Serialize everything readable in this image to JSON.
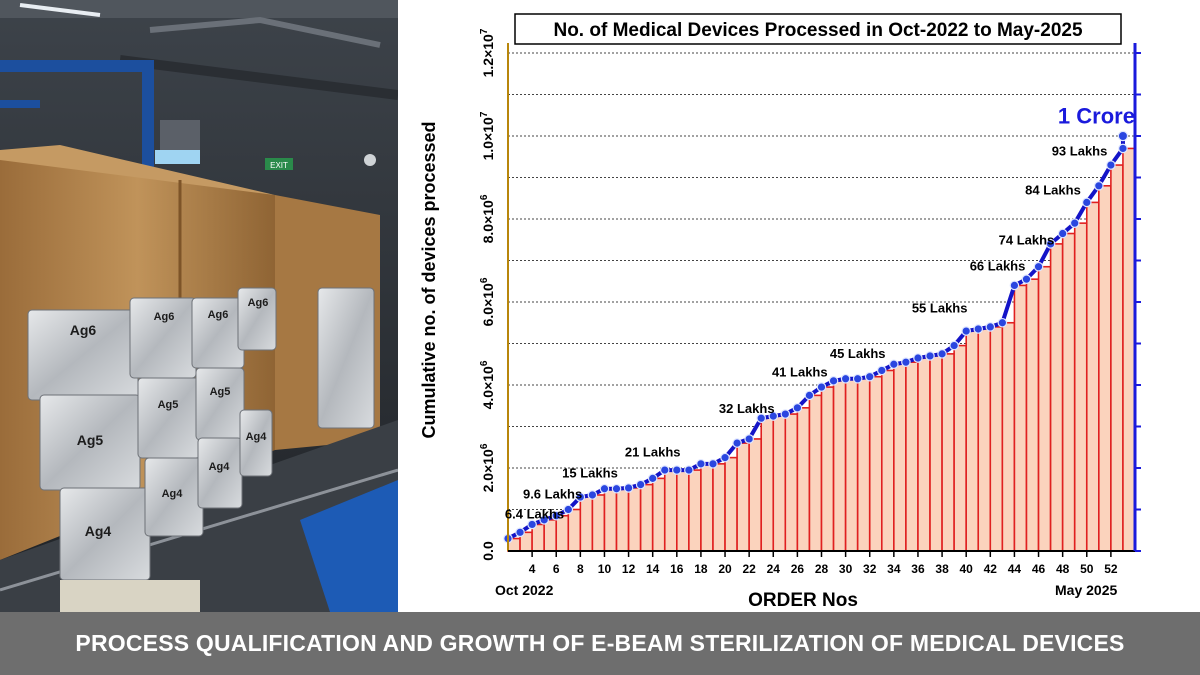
{
  "banner": {
    "text": "PROCESS QUALIFICATION AND GROWTH OF E-BEAM STERILIZATION OF MEDICAL DEVICES"
  },
  "photo": {
    "bag_labels": [
      "Ag6",
      "Ag6",
      "Ag6",
      "Ag6",
      "Ag5",
      "Ag5",
      "Ag5",
      "Ag4",
      "Ag4",
      "Ag4",
      "Ag4"
    ],
    "sign_text": "EXIT",
    "colors": {
      "rack_blue": "#1c4f9e",
      "cardboard": "#b8874e",
      "foil": "#c9ccd1"
    }
  },
  "chart_data": {
    "type": "bar",
    "title": "No. of Medical Devices Processed in Oct-2022 to May-2025",
    "xlabel": "ORDER Nos",
    "ylabel": "Cumulative no. of devices processed",
    "x_start_label": "Oct 2022",
    "x_end_label": "May 2025",
    "ylim": [
      0,
      12000000
    ],
    "xlim": [
      2,
      54
    ],
    "x_ticks": [
      4,
      6,
      8,
      10,
      12,
      14,
      16,
      18,
      20,
      22,
      24,
      26,
      28,
      30,
      32,
      34,
      36,
      38,
      40,
      42,
      44,
      46,
      48,
      50,
      52
    ],
    "y_tick_labels": [
      {
        "value": 0,
        "base": "0.0",
        "exp": ""
      },
      {
        "value": 2000000,
        "base": "2.0×10",
        "exp": "6"
      },
      {
        "value": 4000000,
        "base": "4.0×10",
        "exp": "6"
      },
      {
        "value": 6000000,
        "base": "6.0×10",
        "exp": "6"
      },
      {
        "value": 8000000,
        "base": "8.0×10",
        "exp": "6"
      },
      {
        "value": 10000000,
        "base": "1.0×10",
        "exp": "7"
      },
      {
        "value": 12000000,
        "base": "1.2×10",
        "exp": "7"
      }
    ],
    "grid": "horizontal dotted",
    "colors": {
      "bar_fill": "#fbd3bd",
      "bar_edge": "#e02020",
      "line": "#1414c8",
      "marker": "#2a46e0",
      "highlight": "#1a1adc",
      "left_axis": "#b8860b"
    },
    "x": [
      2,
      3,
      4,
      5,
      6,
      7,
      8,
      9,
      10,
      11,
      12,
      13,
      14,
      15,
      16,
      17,
      18,
      19,
      20,
      21,
      22,
      23,
      24,
      25,
      26,
      27,
      28,
      29,
      30,
      31,
      32,
      33,
      34,
      35,
      36,
      37,
      38,
      39,
      40,
      41,
      42,
      43,
      44,
      45,
      46,
      47,
      48,
      49,
      50,
      51,
      52,
      53
    ],
    "values": [
      300000,
      450000,
      640000,
      750000,
      850000,
      1000000,
      1300000,
      1350000,
      1500000,
      1500000,
      1520000,
      1600000,
      1750000,
      1950000,
      1950000,
      1950000,
      2100000,
      2100000,
      2250000,
      2600000,
      2700000,
      3200000,
      3250000,
      3300000,
      3450000,
      3750000,
      3950000,
      4100000,
      4150000,
      4150000,
      4200000,
      4350000,
      4500000,
      4550000,
      4650000,
      4700000,
      4750000,
      4950000,
      5300000,
      5350000,
      5400000,
      5500000,
      6400000,
      6550000,
      6850000,
      7400000,
      7650000,
      7900000,
      8400000,
      8800000,
      9300000,
      9700000
    ],
    "end_value": 10000000,
    "annotations": [
      {
        "text": "6.4 Lakhs",
        "x": 4.2,
        "y": 780000
      },
      {
        "text": "9.6 Lakhs",
        "x": 5.7,
        "y": 1270000
      },
      {
        "text": "15 Lakhs",
        "x": 8.8,
        "y": 1770000
      },
      {
        "text": "21 Lakhs",
        "x": 14.0,
        "y": 2280000
      },
      {
        "text": "32 Lakhs",
        "x": 21.8,
        "y": 3330000
      },
      {
        "text": "41 Lakhs",
        "x": 26.2,
        "y": 4200000
      },
      {
        "text": "45 Lakhs",
        "x": 31.0,
        "y": 4650000
      },
      {
        "text": "55 Lakhs",
        "x": 37.8,
        "y": 5750000
      },
      {
        "text": "66 Lakhs",
        "x": 42.6,
        "y": 6760000
      },
      {
        "text": "74 Lakhs",
        "x": 45.0,
        "y": 7380000
      },
      {
        "text": "84 Lakhs",
        "x": 47.2,
        "y": 8590000
      },
      {
        "text": "93 Lakhs",
        "x": 49.4,
        "y": 9530000
      }
    ],
    "highlight": {
      "text": "1 Crore",
      "x": 50.8,
      "y": 10300000
    }
  }
}
